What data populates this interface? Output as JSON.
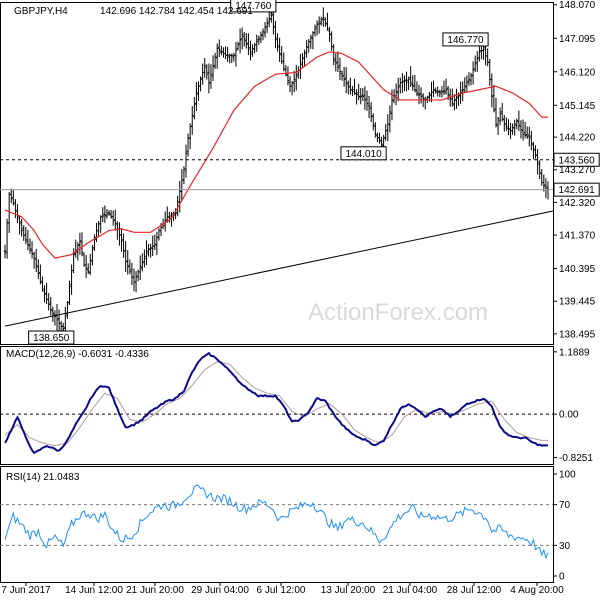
{
  "chart_data": [
    {
      "type": "ohlc",
      "symbol_line": "GBPJPY,H4",
      "ohlc_line": "142.696 142.784 142.454 142.691",
      "watermark": "ActionForex.com",
      "ylim": [
        138.2,
        148.15
      ],
      "y_ticks": [
        "148.070",
        "147.095",
        "146.120",
        "145.145",
        "144.220",
        "143.270",
        "142.320",
        "141.370",
        "140.395",
        "139.445",
        "138.495"
      ],
      "x_ticks": [
        "7 Jun 2017",
        "14 Jun 12:00",
        "21 Jun 20:00",
        "29 Jun 04:00",
        "6 Jul 12:00",
        "13 Jul 20:00",
        "21 Jul 04:00",
        "28 Jul 12:00",
        "4 Aug 20:00"
      ],
      "candle_count": 262,
      "anchors": [
        [
          0,
          140.9
        ],
        [
          2,
          142.55
        ],
        [
          4,
          142.3
        ],
        [
          8,
          141.5
        ],
        [
          14,
          140.7
        ],
        [
          18,
          139.8
        ],
        [
          22,
          139.2
        ],
        [
          26,
          138.8
        ],
        [
          28,
          138.65
        ],
        [
          30,
          139.4
        ],
        [
          33,
          140.8
        ],
        [
          36,
          141.2
        ],
        [
          38,
          140.5
        ],
        [
          40,
          140.3
        ],
        [
          43,
          141.3
        ],
        [
          46,
          141.9
        ],
        [
          50,
          142.0
        ],
        [
          53,
          141.7
        ],
        [
          56,
          141.2
        ],
        [
          58,
          140.6
        ],
        [
          62,
          140.0
        ],
        [
          64,
          140.3
        ],
        [
          68,
          140.9
        ],
        [
          72,
          141.1
        ],
        [
          74,
          141.5
        ],
        [
          78,
          141.9
        ],
        [
          82,
          142.0
        ],
        [
          86,
          143.3
        ],
        [
          88,
          144.2
        ],
        [
          92,
          145.5
        ],
        [
          96,
          146.3
        ],
        [
          98,
          145.8
        ],
        [
          102,
          146.8
        ],
        [
          106,
          146.6
        ],
        [
          110,
          146.6
        ],
        [
          114,
          147.2
        ],
        [
          118,
          146.7
        ],
        [
          122,
          147.1
        ],
        [
          125,
          147.4
        ],
        [
          128,
          147.76
        ],
        [
          130,
          147.1
        ],
        [
          134,
          146.2
        ],
        [
          137,
          145.7
        ],
        [
          140,
          146.0
        ],
        [
          143,
          146.5
        ],
        [
          146,
          147.0
        ],
        [
          150,
          147.5
        ],
        [
          153,
          147.7
        ],
        [
          156,
          147.2
        ],
        [
          158,
          146.5
        ],
        [
          162,
          146.0
        ],
        [
          166,
          145.6
        ],
        [
          170,
          145.4
        ],
        [
          172,
          145.4
        ],
        [
          175,
          145.1
        ],
        [
          178,
          144.3
        ],
        [
          181,
          144.01
        ],
        [
          184,
          144.6
        ],
        [
          186,
          145.3
        ],
        [
          190,
          145.8
        ],
        [
          194,
          145.9
        ],
        [
          198,
          145.5
        ],
        [
          202,
          145.3
        ],
        [
          206,
          145.6
        ],
        [
          209,
          145.5
        ],
        [
          212,
          145.6
        ],
        [
          215,
          145.2
        ],
        [
          220,
          145.6
        ],
        [
          224,
          146.0
        ],
        [
          228,
          146.7
        ],
        [
          230,
          146.77
        ],
        [
          232,
          146.4
        ],
        [
          234,
          145.4
        ],
        [
          236,
          144.6
        ],
        [
          238,
          144.9
        ],
        [
          240,
          144.6
        ],
        [
          243,
          144.4
        ],
        [
          246,
          144.7
        ],
        [
          249,
          144.3
        ],
        [
          252,
          144.2
        ],
        [
          255,
          143.7
        ],
        [
          258,
          142.9
        ],
        [
          261,
          142.69
        ]
      ],
      "ma_anchors": [
        [
          0,
          142.1
        ],
        [
          8,
          141.9
        ],
        [
          14,
          141.5
        ],
        [
          18,
          141.1
        ],
        [
          24,
          140.7
        ],
        [
          32,
          140.8
        ],
        [
          40,
          141.15
        ],
        [
          50,
          141.5
        ],
        [
          56,
          141.55
        ],
        [
          62,
          141.45
        ],
        [
          70,
          141.45
        ],
        [
          80,
          141.85
        ],
        [
          90,
          142.9
        ],
        [
          100,
          143.9
        ],
        [
          110,
          145.0
        ],
        [
          120,
          145.7
        ],
        [
          130,
          146.05
        ],
        [
          140,
          146.1
        ],
        [
          150,
          146.55
        ],
        [
          156,
          146.7
        ],
        [
          162,
          146.65
        ],
        [
          170,
          146.4
        ],
        [
          176,
          146.0
        ],
        [
          182,
          145.6
        ],
        [
          190,
          145.3
        ],
        [
          200,
          145.3
        ],
        [
          210,
          145.3
        ],
        [
          220,
          145.5
        ],
        [
          228,
          145.6
        ],
        [
          236,
          145.7
        ],
        [
          244,
          145.5
        ],
        [
          252,
          145.2
        ],
        [
          258,
          144.8
        ]
      ],
      "trendline": {
        "from": [
          0,
          138.72
        ],
        "to": [
          275,
          142.07
        ]
      },
      "hline": 143.56,
      "current_price": "142.691",
      "price_labels": [
        {
          "text": "147.760",
          "index": 128,
          "value": 147.76,
          "side": "high"
        },
        {
          "text": "146.770",
          "index": 230,
          "value": 146.77,
          "side": "high"
        },
        {
          "text": "144.010",
          "index": 181,
          "value": 144.01,
          "side": "low"
        },
        {
          "text": "138.650",
          "index": 28,
          "value": 138.65,
          "side": "low"
        },
        {
          "text": "143.560",
          "value": 143.56,
          "side": "axis"
        }
      ]
    },
    {
      "type": "line",
      "label": "MACD(12,26,9) -0.6031 -0.4336",
      "ylim": [
        -0.95,
        1.3
      ],
      "y_ticks": [
        "1.1889",
        "0.00",
        "-0.8251"
      ],
      "zero_line": 0,
      "macd_anchors": [
        [
          0,
          -0.55
        ],
        [
          6,
          -0.05
        ],
        [
          10,
          -0.45
        ],
        [
          14,
          -0.75
        ],
        [
          20,
          -0.6
        ],
        [
          26,
          -0.7
        ],
        [
          30,
          -0.5
        ],
        [
          34,
          -0.2
        ],
        [
          38,
          0.05
        ],
        [
          42,
          0.35
        ],
        [
          46,
          0.55
        ],
        [
          50,
          0.5
        ],
        [
          54,
          0.1
        ],
        [
          58,
          -0.25
        ],
        [
          62,
          -0.2
        ],
        [
          66,
          -0.1
        ],
        [
          70,
          0.05
        ],
        [
          74,
          0.15
        ],
        [
          78,
          0.25
        ],
        [
          82,
          0.3
        ],
        [
          86,
          0.45
        ],
        [
          90,
          0.8
        ],
        [
          94,
          1.05
        ],
        [
          98,
          1.15
        ],
        [
          102,
          1.05
        ],
        [
          106,
          0.9
        ],
        [
          110,
          0.75
        ],
        [
          114,
          0.55
        ],
        [
          118,
          0.45
        ],
        [
          122,
          0.35
        ],
        [
          126,
          0.35
        ],
        [
          130,
          0.35
        ],
        [
          134,
          0.15
        ],
        [
          138,
          -0.15
        ],
        [
          142,
          -0.1
        ],
        [
          146,
          0.05
        ],
        [
          150,
          0.3
        ],
        [
          154,
          0.25
        ],
        [
          158,
          0.0
        ],
        [
          162,
          -0.2
        ],
        [
          166,
          -0.35
        ],
        [
          170,
          -0.45
        ],
        [
          174,
          -0.5
        ],
        [
          178,
          -0.6
        ],
        [
          182,
          -0.5
        ],
        [
          186,
          -0.2
        ],
        [
          190,
          0.1
        ],
        [
          194,
          0.2
        ],
        [
          198,
          0.1
        ],
        [
          202,
          -0.05
        ],
        [
          206,
          0.05
        ],
        [
          210,
          0.1
        ],
        [
          214,
          -0.05
        ],
        [
          218,
          0.05
        ],
        [
          222,
          0.2
        ],
        [
          226,
          0.25
        ],
        [
          230,
          0.3
        ],
        [
          234,
          0.15
        ],
        [
          238,
          -0.25
        ],
        [
          242,
          -0.4
        ],
        [
          246,
          -0.45
        ],
        [
          250,
          -0.45
        ],
        [
          254,
          -0.55
        ],
        [
          258,
          -0.6
        ]
      ],
      "signal_anchors": [
        [
          0,
          -0.4
        ],
        [
          6,
          -0.2
        ],
        [
          12,
          -0.45
        ],
        [
          18,
          -0.55
        ],
        [
          24,
          -0.6
        ],
        [
          30,
          -0.55
        ],
        [
          36,
          -0.25
        ],
        [
          42,
          0.1
        ],
        [
          48,
          0.4
        ],
        [
          54,
          0.3
        ],
        [
          60,
          -0.1
        ],
        [
          66,
          -0.15
        ],
        [
          72,
          0.0
        ],
        [
          78,
          0.2
        ],
        [
          84,
          0.3
        ],
        [
          90,
          0.55
        ],
        [
          96,
          0.85
        ],
        [
          102,
          1.0
        ],
        [
          108,
          0.95
        ],
        [
          114,
          0.7
        ],
        [
          120,
          0.5
        ],
        [
          126,
          0.4
        ],
        [
          132,
          0.35
        ],
        [
          138,
          0.05
        ],
        [
          144,
          -0.05
        ],
        [
          150,
          0.1
        ],
        [
          156,
          0.2
        ],
        [
          162,
          0.0
        ],
        [
          168,
          -0.3
        ],
        [
          174,
          -0.45
        ],
        [
          180,
          -0.55
        ],
        [
          186,
          -0.4
        ],
        [
          192,
          -0.05
        ],
        [
          198,
          0.1
        ],
        [
          204,
          0.0
        ],
        [
          210,
          0.05
        ],
        [
          216,
          0.0
        ],
        [
          222,
          0.1
        ],
        [
          228,
          0.2
        ],
        [
          234,
          0.25
        ],
        [
          240,
          -0.1
        ],
        [
          246,
          -0.35
        ],
        [
          252,
          -0.45
        ],
        [
          258,
          -0.5
        ]
      ]
    },
    {
      "type": "line",
      "label": "RSI(14) 21.0483",
      "ylim": [
        0,
        100
      ],
      "y_ticks": [
        "100",
        "70",
        "30",
        "0"
      ],
      "levels": [
        70,
        30
      ],
      "rsi_anchors": [
        [
          0,
          38
        ],
        [
          4,
          58
        ],
        [
          8,
          50
        ],
        [
          12,
          40
        ],
        [
          16,
          44
        ],
        [
          20,
          30
        ],
        [
          24,
          38
        ],
        [
          28,
          29
        ],
        [
          32,
          50
        ],
        [
          36,
          60
        ],
        [
          40,
          62
        ],
        [
          44,
          56
        ],
        [
          48,
          60
        ],
        [
          52,
          45
        ],
        [
          56,
          36
        ],
        [
          60,
          38
        ],
        [
          64,
          48
        ],
        [
          68,
          60
        ],
        [
          72,
          66
        ],
        [
          76,
          70
        ],
        [
          80,
          68
        ],
        [
          84,
          72
        ],
        [
          88,
          80
        ],
        [
          92,
          85
        ],
        [
          96,
          82
        ],
        [
          100,
          77
        ],
        [
          104,
          76
        ],
        [
          108,
          74
        ],
        [
          112,
          68
        ],
        [
          116,
          66
        ],
        [
          120,
          70
        ],
        [
          124,
          72
        ],
        [
          128,
          68
        ],
        [
          132,
          55
        ],
        [
          136,
          62
        ],
        [
          140,
          66
        ],
        [
          144,
          70
        ],
        [
          148,
          72
        ],
        [
          152,
          62
        ],
        [
          156,
          52
        ],
        [
          160,
          46
        ],
        [
          164,
          56
        ],
        [
          168,
          54
        ],
        [
          172,
          52
        ],
        [
          176,
          44
        ],
        [
          180,
          35
        ],
        [
          184,
          42
        ],
        [
          188,
          56
        ],
        [
          192,
          62
        ],
        [
          196,
          66
        ],
        [
          200,
          58
        ],
        [
          204,
          60
        ],
        [
          208,
          58
        ],
        [
          212,
          56
        ],
        [
          216,
          58
        ],
        [
          220,
          62
        ],
        [
          224,
          66
        ],
        [
          228,
          62
        ],
        [
          232,
          56
        ],
        [
          234,
          44
        ],
        [
          238,
          46
        ],
        [
          242,
          40
        ],
        [
          246,
          38
        ],
        [
          250,
          37
        ],
        [
          254,
          32
        ],
        [
          258,
          21
        ]
      ]
    }
  ]
}
